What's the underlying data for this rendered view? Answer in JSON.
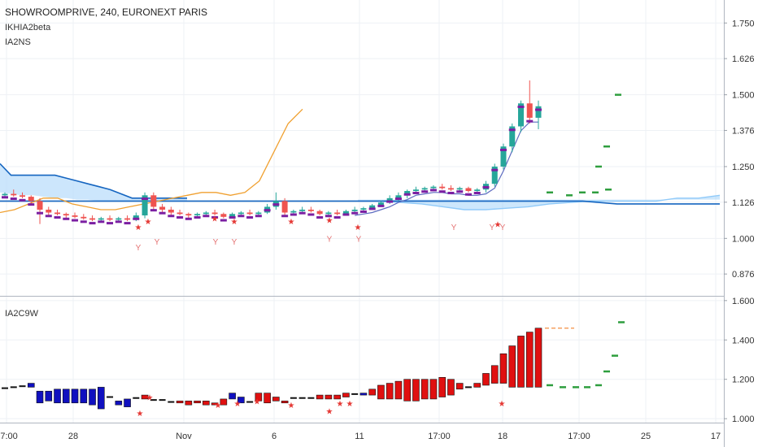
{
  "header": {
    "symbol_line": "SHOWROOMPRIVE, 240, EURONEXT PARIS",
    "indicator_1": "IKHIA2beta",
    "indicator_2": "IA2NS",
    "lower_pane_name": "IA2C9W"
  },
  "colors": {
    "bull": "#26a69a",
    "bear": "#ef5350",
    "purple": "#7b1fa2",
    "cloud_fill": "#bbdefb",
    "cloud_line": "#1565c0",
    "kumo_light": "#90caf9",
    "orange": "#f0a030",
    "green_dash": "#2e9e3e",
    "hist_blue": "#1010c0",
    "hist_red": "#e01010",
    "grid": "#eef1f5",
    "axis_text": "#333333"
  },
  "chart_data": [
    {
      "type": "candlestick",
      "pane": "price",
      "y_ticks": [
        "1.750",
        "1.626",
        "1.500",
        "1.376",
        "1.250",
        "1.126",
        "1.000",
        "0.876"
      ],
      "ylim": [
        0.8,
        1.83
      ],
      "x_ticks": [
        "17:00",
        "28",
        "Nov",
        "6",
        "11",
        "17:00",
        "18",
        "17:00",
        "25",
        "17"
      ],
      "candles": [
        [
          1.15,
          1.16,
          1.14,
          1.155
        ],
        [
          1.155,
          1.17,
          1.145,
          1.15
        ],
        [
          1.15,
          1.16,
          1.14,
          1.145
        ],
        [
          1.145,
          1.15,
          1.12,
          1.13
        ],
        [
          1.13,
          1.14,
          1.05,
          1.1
        ],
        [
          1.1,
          1.11,
          1.08,
          1.09
        ],
        [
          1.09,
          1.1,
          1.08,
          1.085
        ],
        [
          1.085,
          1.09,
          1.07,
          1.08
        ],
        [
          1.08,
          1.09,
          1.07,
          1.075
        ],
        [
          1.075,
          1.085,
          1.065,
          1.07
        ],
        [
          1.07,
          1.08,
          1.06,
          1.065
        ],
        [
          1.065,
          1.075,
          1.06,
          1.07
        ],
        [
          1.07,
          1.08,
          1.06,
          1.065
        ],
        [
          1.065,
          1.075,
          1.06,
          1.07
        ],
        [
          1.07,
          1.08,
          1.06,
          1.065
        ],
        [
          1.065,
          1.09,
          1.06,
          1.08
        ],
        [
          1.08,
          1.16,
          1.07,
          1.15
        ],
        [
          1.15,
          1.16,
          1.1,
          1.11
        ],
        [
          1.11,
          1.12,
          1.09,
          1.1
        ],
        [
          1.1,
          1.11,
          1.08,
          1.09
        ],
        [
          1.09,
          1.1,
          1.08,
          1.085
        ],
        [
          1.085,
          1.09,
          1.07,
          1.08
        ],
        [
          1.08,
          1.09,
          1.07,
          1.085
        ],
        [
          1.085,
          1.095,
          1.075,
          1.09
        ],
        [
          1.09,
          1.1,
          1.08,
          1.085
        ],
        [
          1.085,
          1.09,
          1.07,
          1.075
        ],
        [
          1.075,
          1.09,
          1.07,
          1.085
        ],
        [
          1.085,
          1.095,
          1.08,
          1.09
        ],
        [
          1.09,
          1.1,
          1.08,
          1.085
        ],
        [
          1.085,
          1.095,
          1.08,
          1.09
        ],
        [
          1.09,
          1.12,
          1.085,
          1.11
        ],
        [
          1.11,
          1.16,
          1.1,
          1.13
        ],
        [
          1.13,
          1.14,
          1.08,
          1.09
        ],
        [
          1.09,
          1.1,
          1.08,
          1.095
        ],
        [
          1.095,
          1.11,
          1.09,
          1.1
        ],
        [
          1.1,
          1.11,
          1.09,
          1.095
        ],
        [
          1.095,
          1.1,
          1.08,
          1.085
        ],
        [
          1.085,
          1.095,
          1.08,
          1.09
        ],
        [
          1.09,
          1.1,
          1.08,
          1.085
        ],
        [
          1.085,
          1.1,
          1.08,
          1.095
        ],
        [
          1.095,
          1.11,
          1.09,
          1.1
        ],
        [
          1.1,
          1.11,
          1.09,
          1.105
        ],
        [
          1.105,
          1.12,
          1.1,
          1.115
        ],
        [
          1.115,
          1.13,
          1.11,
          1.125
        ],
        [
          1.125,
          1.15,
          1.12,
          1.14
        ],
        [
          1.14,
          1.16,
          1.13,
          1.15
        ],
        [
          1.15,
          1.17,
          1.14,
          1.165
        ],
        [
          1.165,
          1.18,
          1.155,
          1.17
        ],
        [
          1.17,
          1.18,
          1.16,
          1.175
        ],
        [
          1.175,
          1.185,
          1.165,
          1.18
        ],
        [
          1.18,
          1.19,
          1.17,
          1.175
        ],
        [
          1.175,
          1.185,
          1.165,
          1.17
        ],
        [
          1.17,
          1.18,
          1.16,
          1.175
        ],
        [
          1.175,
          1.18,
          1.16,
          1.165
        ],
        [
          1.165,
          1.175,
          1.155,
          1.17
        ],
        [
          1.17,
          1.2,
          1.16,
          1.19
        ],
        [
          1.19,
          1.26,
          1.18,
          1.25
        ],
        [
          1.25,
          1.33,
          1.24,
          1.32
        ],
        [
          1.32,
          1.4,
          1.3,
          1.39
        ],
        [
          1.39,
          1.48,
          1.37,
          1.47
        ],
        [
          1.47,
          1.55,
          1.4,
          1.42
        ],
        [
          1.42,
          1.48,
          1.38,
          1.46
        ]
      ],
      "cloud_upper": [
        1.26,
        1.22,
        1.22,
        1.22,
        1.22,
        1.22,
        1.21,
        1.2,
        1.19,
        1.18,
        1.17,
        1.155,
        1.14,
        1.14,
        1.14,
        1.14,
        1.14,
        1.14
      ],
      "cloud_lower": [
        1.16,
        1.155,
        1.15,
        1.15,
        1.145,
        1.14,
        1.14,
        1.135,
        1.135,
        1.13,
        1.13,
        1.13,
        1.13,
        1.13,
        1.13,
        1.13,
        1.13,
        1.13
      ],
      "kumo_lower_right": [
        1.13,
        1.13,
        1.125,
        1.12,
        1.11,
        1.1,
        1.1,
        1.105,
        1.11,
        1.12,
        1.125,
        1.13,
        1.13,
        1.13,
        1.13,
        1.14,
        1.14,
        1.15
      ],
      "orange_line": [
        1.09,
        1.1,
        1.12,
        1.14,
        1.14,
        1.12,
        1.11,
        1.1,
        1.1,
        1.11,
        1.12,
        1.13,
        1.14,
        1.15,
        1.16,
        1.16,
        1.15,
        1.16,
        1.2,
        1.3,
        1.4,
        1.45
      ],
      "future_dashes": [
        1.16,
        1.15,
        1.16,
        1.16,
        1.17,
        1.25,
        1.32,
        1.5
      ],
      "star_values": [
        1.04,
        1.06,
        1.07,
        1.06,
        1.06,
        1.065,
        1.04,
        1.05
      ],
      "y_markers": [
        {
          "v": 0.97,
          "label": "Y"
        },
        {
          "v": 0.99,
          "label": "Y"
        },
        {
          "v": 0.99,
          "label": "Y"
        },
        {
          "v": 0.99,
          "label": "Y"
        },
        {
          "v": 1.0,
          "label": "Y"
        },
        {
          "v": 1.0,
          "label": "Y"
        },
        {
          "v": 1.04,
          "label": "Y"
        },
        {
          "v": 1.04,
          "label": "Y"
        },
        {
          "v": 1.04,
          "label": "Y"
        }
      ]
    },
    {
      "type": "bar",
      "pane": "IA2C9W",
      "y_ticks": [
        "1.600",
        "1.400",
        "1.200",
        "1.000"
      ],
      "ylim": [
        0.98,
        1.62
      ],
      "bar_values": [
        [
          1.16,
          1.15,
          "neutral"
        ],
        [
          1.16,
          1.16,
          "neutral"
        ],
        [
          1.17,
          1.16,
          "neutral"
        ],
        [
          1.18,
          1.16,
          "blue"
        ],
        [
          1.14,
          1.08,
          "blue"
        ],
        [
          1.14,
          1.09,
          "blue"
        ],
        [
          1.15,
          1.08,
          "blue"
        ],
        [
          1.15,
          1.08,
          "blue"
        ],
        [
          1.15,
          1.08,
          "blue"
        ],
        [
          1.15,
          1.08,
          "blue"
        ],
        [
          1.15,
          1.07,
          "blue"
        ],
        [
          1.16,
          1.05,
          "blue"
        ],
        [
          1.12,
          1.1,
          "neutral"
        ],
        [
          1.09,
          1.07,
          "blue"
        ],
        [
          1.1,
          1.06,
          "blue"
        ],
        [
          1.11,
          1.1,
          "neutral"
        ],
        [
          1.12,
          1.1,
          "red"
        ],
        [
          1.1,
          1.09,
          "neutral"
        ],
        [
          1.1,
          1.09,
          "neutral"
        ],
        [
          1.09,
          1.08,
          "neutral"
        ],
        [
          1.09,
          1.08,
          "red"
        ],
        [
          1.09,
          1.07,
          "red"
        ],
        [
          1.09,
          1.08,
          "red"
        ],
        [
          1.09,
          1.07,
          "red"
        ],
        [
          1.08,
          1.07,
          "red"
        ],
        [
          1.1,
          1.07,
          "red"
        ],
        [
          1.13,
          1.1,
          "blue"
        ],
        [
          1.11,
          1.08,
          "blue"
        ],
        [
          1.09,
          1.08,
          "neutral"
        ],
        [
          1.13,
          1.09,
          "red"
        ],
        [
          1.13,
          1.08,
          "red"
        ],
        [
          1.11,
          1.09,
          "red"
        ],
        [
          1.09,
          1.08,
          "red"
        ],
        [
          1.11,
          1.1,
          "neutral"
        ],
        [
          1.11,
          1.1,
          "neutral"
        ],
        [
          1.11,
          1.1,
          "neutral"
        ],
        [
          1.12,
          1.1,
          "red"
        ],
        [
          1.12,
          1.1,
          "red"
        ],
        [
          1.12,
          1.1,
          "red"
        ],
        [
          1.13,
          1.11,
          "red"
        ],
        [
          1.13,
          1.12,
          "neutral"
        ],
        [
          1.13,
          1.12,
          "blue"
        ],
        [
          1.15,
          1.12,
          "red"
        ],
        [
          1.17,
          1.1,
          "red"
        ],
        [
          1.18,
          1.1,
          "red"
        ],
        [
          1.19,
          1.1,
          "red"
        ],
        [
          1.2,
          1.09,
          "red"
        ],
        [
          1.2,
          1.09,
          "red"
        ],
        [
          1.2,
          1.1,
          "red"
        ],
        [
          1.2,
          1.1,
          "red"
        ],
        [
          1.21,
          1.11,
          "red"
        ],
        [
          1.2,
          1.12,
          "red"
        ],
        [
          1.18,
          1.15,
          "red"
        ],
        [
          1.17,
          1.15,
          "neutral"
        ],
        [
          1.18,
          1.16,
          "red"
        ],
        [
          1.23,
          1.17,
          "red"
        ],
        [
          1.27,
          1.18,
          "red"
        ],
        [
          1.33,
          1.18,
          "red"
        ],
        [
          1.37,
          1.16,
          "red"
        ],
        [
          1.42,
          1.16,
          "red"
        ],
        [
          1.44,
          1.16,
          "red"
        ],
        [
          1.46,
          1.16,
          "red"
        ]
      ],
      "future_dashes": [
        1.17,
        1.16,
        1.16,
        1.16,
        1.17,
        1.24,
        1.32,
        1.49
      ],
      "top_dash": 1.46,
      "star_values": [
        1.03,
        1.11,
        1.07,
        1.08,
        1.09,
        1.07,
        1.04,
        1.08,
        1.08,
        1.08,
        1.1
      ]
    }
  ]
}
